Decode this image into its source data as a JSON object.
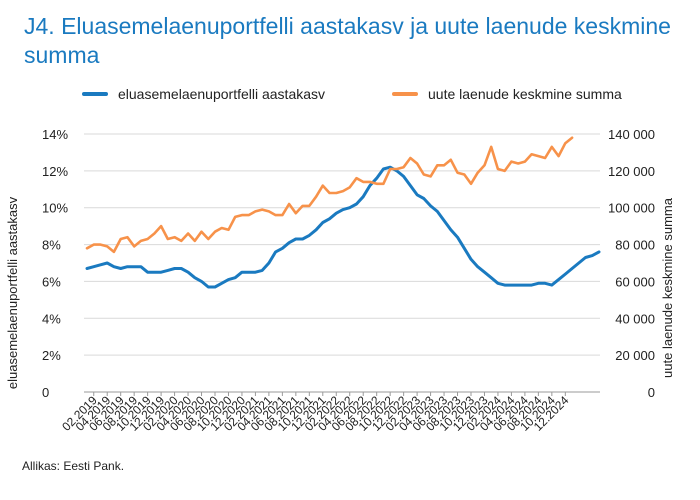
{
  "title": "J4. Eluasemelaenuportfelli aastakasv ja uute laenude keskmine summa",
  "source": "Allikas: Eesti Pank.",
  "colors": {
    "title": "#1a7ac0",
    "series1": "#1a7ac0",
    "series2": "#f7924a"
  },
  "chart_data": {
    "type": "line",
    "ylabel_left": "eluasemelaenuportfelli aastakasv",
    "ylabel_right": "uute laenude keskmine summa",
    "y_left_ticks": [
      "14%",
      "12%",
      "10%",
      "8%",
      "6%",
      "4%",
      "2%",
      "0"
    ],
    "y_right_ticks": [
      "140 000",
      "120 000",
      "100 000",
      "80 000",
      "60 000",
      "40 000",
      "20 000",
      "0"
    ],
    "y_left_lim": [
      0,
      14
    ],
    "y_right_lim": [
      0,
      140000
    ],
    "x_ticks": [
      "02.2019",
      "04.2019",
      "06.2019",
      "08.2019",
      "10.2019",
      "12.2019",
      "02.2020",
      "04.2020",
      "06.2020",
      "08.2020",
      "10.2020",
      "12.2020",
      "02.2021",
      "04.2021",
      "06.2021",
      "08.2021",
      "10.2021",
      "12.2021",
      "02.2022",
      "04.2022",
      "06.2022",
      "08.2022",
      "10.2022",
      "12.2022",
      "02.2023",
      "04.2023",
      "06.2023",
      "08.2023",
      "10.2023",
      "12.2023",
      "02.2024",
      "04.2024",
      "06.2024",
      "08.2024",
      "10.2024",
      "12.2024"
    ],
    "grid": true,
    "legend_position": "top",
    "series": [
      {
        "name": "eluasemelaenuportfelli aastakasv",
        "axis": "left",
        "values": [
          6.7,
          6.8,
          6.9,
          7.0,
          6.8,
          6.7,
          6.8,
          6.8,
          6.8,
          6.5,
          6.5,
          6.5,
          6.6,
          6.7,
          6.7,
          6.5,
          6.2,
          6.0,
          5.7,
          5.7,
          5.9,
          6.1,
          6.2,
          6.5,
          6.5,
          6.5,
          6.6,
          7.0,
          7.6,
          7.8,
          8.1,
          8.3,
          8.3,
          8.5,
          8.8,
          9.2,
          9.4,
          9.7,
          9.9,
          10.0,
          10.2,
          10.6,
          11.2,
          11.6,
          12.1,
          12.2,
          12.0,
          11.7,
          11.2,
          10.7,
          10.5,
          10.1,
          9.8,
          9.3,
          8.8,
          8.4,
          7.8,
          7.2,
          6.8,
          6.5,
          6.2,
          5.9,
          5.8,
          5.8,
          5.8,
          5.8,
          5.8,
          5.9,
          5.9,
          5.8,
          6.1,
          6.4,
          6.7,
          7.0,
          7.3,
          7.4,
          7.6
        ]
      },
      {
        "name": "uute laenude keskmine summa",
        "axis": "right",
        "values": [
          78000,
          80000,
          80000,
          79000,
          76000,
          83000,
          84000,
          79000,
          82000,
          83000,
          86000,
          90000,
          83000,
          84000,
          82000,
          86000,
          82000,
          87000,
          83000,
          87000,
          89000,
          88000,
          95000,
          96000,
          96000,
          98000,
          99000,
          98000,
          96000,
          96000,
          102000,
          97000,
          101000,
          101000,
          106000,
          112000,
          108000,
          108000,
          109000,
          111000,
          116000,
          114000,
          114000,
          113000,
          113000,
          121000,
          121000,
          122000,
          127000,
          124000,
          118000,
          117000,
          123000,
          123000,
          126000,
          119000,
          118000,
          113000,
          119000,
          123000,
          133000,
          121000,
          120000,
          125000,
          124000,
          125000,
          129000,
          128000,
          127000,
          133000,
          128000,
          135000,
          138000
        ]
      }
    ]
  }
}
